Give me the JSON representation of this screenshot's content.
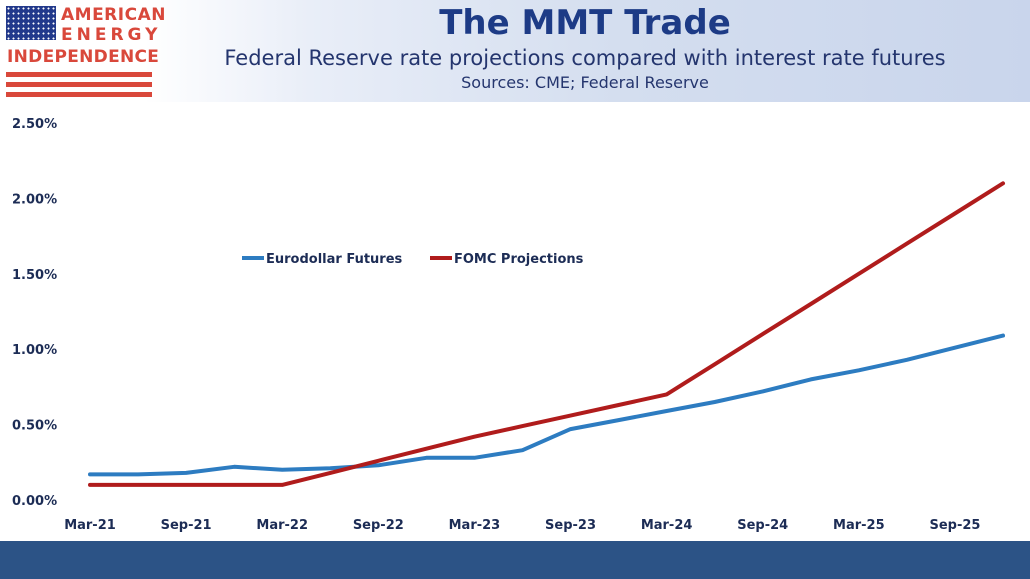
{
  "logo": {
    "line1": "AMERICAN",
    "line2": "ENERGY",
    "line3": "INDEPENDENCE",
    "icon": "us-flag-icon"
  },
  "header": {
    "title": "The MMT Trade",
    "subtitle": "Federal Reserve rate projections compared with interest rate futures",
    "sources": "Sources: CME; Federal Reserve"
  },
  "colors": {
    "eurodollar": "#2d7cc1",
    "fomc": "#b01c1c",
    "title": "#1d3b86",
    "footer": "#2c5386",
    "logo_red": "#d9483b"
  },
  "chart_data": {
    "type": "line",
    "title": "The MMT Trade",
    "xlabel": "",
    "ylabel": "",
    "ylim": [
      0,
      2.5
    ],
    "y_ticks": [
      {
        "value": 0.0,
        "label": "0.00%"
      },
      {
        "value": 0.5,
        "label": "0.50%"
      },
      {
        "value": 1.0,
        "label": "1.00%"
      },
      {
        "value": 1.5,
        "label": "1.50%"
      },
      {
        "value": 2.0,
        "label": "2.00%"
      },
      {
        "value": 2.5,
        "label": "2.50%"
      }
    ],
    "x_ticks": [
      {
        "value": "Mar-21",
        "label": "Mar-21"
      },
      {
        "value": "Sep-21",
        "label": "Sep-21"
      },
      {
        "value": "Mar-22",
        "label": "Mar-22"
      },
      {
        "value": "Sep-22",
        "label": "Sep-22"
      },
      {
        "value": "Mar-23",
        "label": "Mar-23"
      },
      {
        "value": "Sep-23",
        "label": "Sep-23"
      },
      {
        "value": "Mar-24",
        "label": "Mar-24"
      },
      {
        "value": "Sep-24",
        "label": "Sep-24"
      },
      {
        "value": "Mar-25",
        "label": "Mar-25"
      },
      {
        "value": "Sep-25",
        "label": "Sep-25"
      }
    ],
    "xlim": [
      "Mar-21",
      "Dec-25"
    ],
    "grid": false,
    "legend_position": "upper-left",
    "series": [
      {
        "name": "Eurodollar Futures",
        "points": [
          {
            "x": "Mar-21",
            "y": 0.17
          },
          {
            "x": "Jun-21",
            "y": 0.17
          },
          {
            "x": "Sep-21",
            "y": 0.18
          },
          {
            "x": "Dec-21",
            "y": 0.22
          },
          {
            "x": "Mar-22",
            "y": 0.2
          },
          {
            "x": "Jun-22",
            "y": 0.21
          },
          {
            "x": "Sep-22",
            "y": 0.23
          },
          {
            "x": "Dec-22",
            "y": 0.28
          },
          {
            "x": "Mar-23",
            "y": 0.28
          },
          {
            "x": "Jun-23",
            "y": 0.33
          },
          {
            "x": "Sep-23",
            "y": 0.47
          },
          {
            "x": "Dec-23",
            "y": 0.53
          },
          {
            "x": "Mar-24",
            "y": 0.59
          },
          {
            "x": "Jun-24",
            "y": 0.65
          },
          {
            "x": "Sep-24",
            "y": 0.72
          },
          {
            "x": "Dec-24",
            "y": 0.8
          },
          {
            "x": "Mar-25",
            "y": 0.86
          },
          {
            "x": "Jun-25",
            "y": 0.93
          },
          {
            "x": "Sep-25",
            "y": 1.01
          },
          {
            "x": "Dec-25",
            "y": 1.09
          }
        ]
      },
      {
        "name": "FOMC Projections",
        "points": [
          {
            "x": "Mar-21",
            "y": 0.1
          },
          {
            "x": "Jun-21",
            "y": 0.1
          },
          {
            "x": "Sep-21",
            "y": 0.1
          },
          {
            "x": "Dec-21",
            "y": 0.1
          },
          {
            "x": "Mar-22",
            "y": 0.1
          },
          {
            "x": "Jun-22",
            "y": 0.18
          },
          {
            "x": "Sep-22",
            "y": 0.26
          },
          {
            "x": "Dec-22",
            "y": 0.34
          },
          {
            "x": "Mar-23",
            "y": 0.42
          },
          {
            "x": "Jun-23",
            "y": 0.49
          },
          {
            "x": "Sep-23",
            "y": 0.56
          },
          {
            "x": "Dec-23",
            "y": 0.63
          },
          {
            "x": "Mar-24",
            "y": 0.7
          },
          {
            "x": "Jun-24",
            "y": 0.9
          },
          {
            "x": "Sep-24",
            "y": 1.1
          },
          {
            "x": "Dec-24",
            "y": 1.3
          },
          {
            "x": "Mar-25",
            "y": 1.5
          },
          {
            "x": "Jun-25",
            "y": 1.7
          },
          {
            "x": "Sep-25",
            "y": 1.9
          },
          {
            "x": "Dec-25",
            "y": 2.1
          }
        ]
      }
    ]
  }
}
